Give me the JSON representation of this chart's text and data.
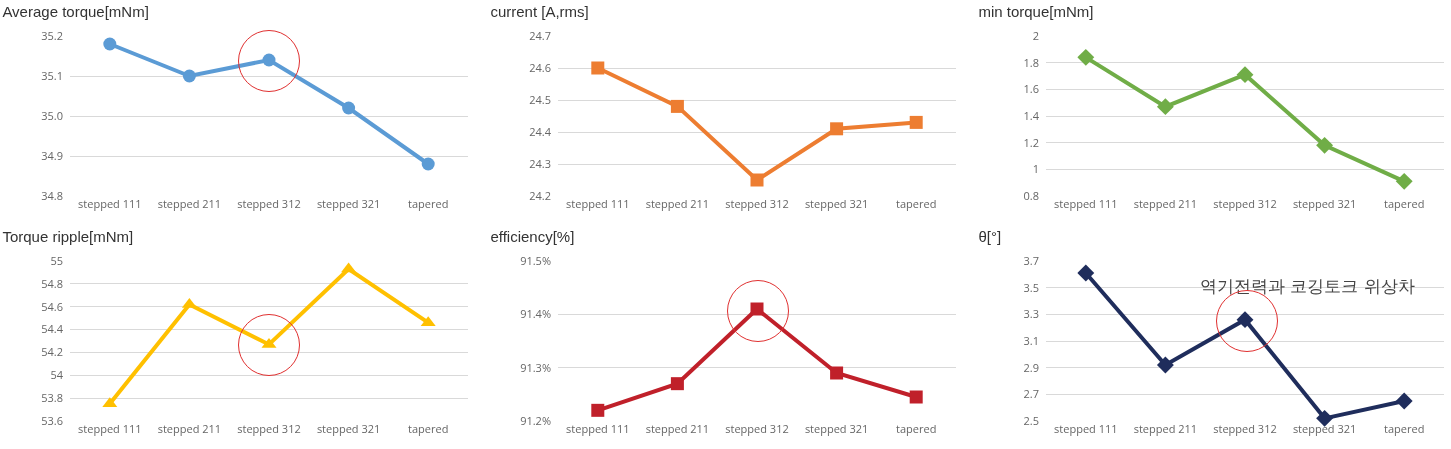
{
  "chart_data": [
    {
      "type": "line",
      "title": "Average torque[mNm]",
      "categories": [
        "stepped 111",
        "stepped 211",
        "stepped 312",
        "stepped 321",
        "tapered"
      ],
      "series": [
        {
          "color": "#5b9bd5",
          "values": [
            35.18,
            35.1,
            35.14,
            35.02,
            34.88
          ]
        }
      ],
      "ylim": [
        34.8,
        35.2
      ],
      "yticks": [
        {
          "value": 34.8,
          "label": "34.8"
        },
        {
          "value": 34.9,
          "label": "34.9"
        },
        {
          "value": 35,
          "label": "35.0"
        },
        {
          "value": 35.1,
          "label": "35.1"
        },
        {
          "value": 35.2,
          "label": "35.2"
        }
      ],
      "grid": "y",
      "marker": "circle"
    },
    {
      "type": "line",
      "title": "current [A,rms]",
      "categories": [
        "stepped 111",
        "stepped 211",
        "stepped 312",
        "stepped 321",
        "tapered"
      ],
      "series": [
        {
          "color": "#ed7d31",
          "values": [
            24.6,
            24.48,
            24.25,
            24.41,
            24.43
          ]
        }
      ],
      "ylim": [
        24.2,
        24.7
      ],
      "yticks": [
        24.2,
        24.3,
        24.4,
        24.5,
        24.6,
        24.7
      ],
      "grid": "y",
      "marker": "square"
    },
    {
      "type": "line",
      "title": "min torque[mNm]",
      "categories": [
        "stepped 111",
        "stepped 211",
        "stepped 312",
        "stepped 321",
        "tapered"
      ],
      "series": [
        {
          "color": "#70ad47",
          "values": [
            1.84,
            1.47,
            1.71,
            1.18,
            0.91
          ]
        }
      ],
      "ylim": [
        0.8,
        2
      ],
      "yticks": [
        0.8,
        1,
        1.2,
        1.4,
        1.6,
        1.8,
        2
      ],
      "grid": "y",
      "marker": "diamond"
    },
    {
      "type": "line",
      "title": "Torque ripple[mNm]",
      "categories": [
        "stepped 111",
        "stepped 211",
        "stepped 312",
        "stepped 321",
        "tapered"
      ],
      "series": [
        {
          "color": "#ffc000",
          "values": [
            53.75,
            54.62,
            54.27,
            54.93,
            54.46
          ]
        }
      ],
      "ylim": [
        53.6,
        55
      ],
      "yticks": [
        53.6,
        53.8,
        54,
        54.2,
        54.4,
        54.6,
        54.8,
        55
      ],
      "grid": "y",
      "marker": "triangle"
    },
    {
      "type": "line",
      "title": "efficiency[%]",
      "categories": [
        "stepped 111",
        "stepped 211",
        "stepped 312",
        "stepped 321",
        "tapered"
      ],
      "series": [
        {
          "color": "#c0202a",
          "values": [
            91.22,
            91.27,
            91.41,
            91.29,
            91.245
          ]
        }
      ],
      "ylim": [
        91.2,
        91.5
      ],
      "yticks": [
        {
          "value": 91.2,
          "label": "91.2%"
        },
        {
          "value": 91.3,
          "label": "91.3%"
        },
        {
          "value": 91.4,
          "label": "91.4%"
        },
        {
          "value": 91.5,
          "label": "91.5%"
        }
      ],
      "grid": "y",
      "marker": "square"
    },
    {
      "type": "line",
      "title": "θ[°]",
      "categories": [
        "stepped 111",
        "stepped 211",
        "stepped 312",
        "stepped 321",
        "tapered"
      ],
      "series": [
        {
          "color": "#1f2d5c",
          "values": [
            3.61,
            2.92,
            3.26,
            2.52,
            2.65
          ]
        }
      ],
      "ylim": [
        2.5,
        3.7
      ],
      "yticks": [
        2.5,
        2.7,
        2.9,
        3.1,
        3.3,
        3.5,
        3.7
      ],
      "grid": "y",
      "marker": "diamond",
      "annotations": [
        {
          "text": "역기전력과 코깅토크 위상차",
          "x": "stepped 312",
          "y": 3.26
        }
      ]
    }
  ]
}
